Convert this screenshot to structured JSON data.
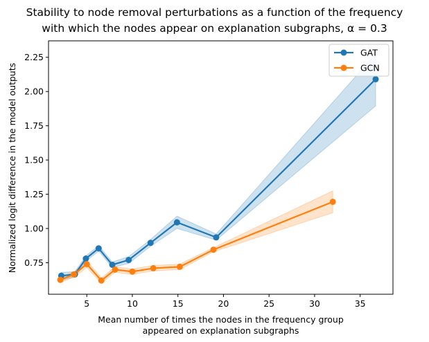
{
  "chart_data": {
    "type": "line",
    "title_lines": [
      "Stability to node removal perturbations as a function of the frequency",
      "with which the nodes appear on explanation subgraphs, α = 0.3"
    ],
    "xlabel_lines": [
      "Mean number of times the nodes in the frequency group",
      "appeared on explanation subgraphs"
    ],
    "ylabel": "Normalized logit difference in the model outputs",
    "xlim": [
      0.8,
      38.6
    ],
    "ylim": [
      0.52,
      2.37
    ],
    "xticks": [
      5,
      10,
      15,
      20,
      25,
      30,
      35
    ],
    "yticks": [
      0.75,
      1.0,
      1.25,
      1.5,
      1.75,
      2.0,
      2.25
    ],
    "ytick_labels": [
      "0.75",
      "1.00",
      "1.25",
      "1.50",
      "1.75",
      "2.00",
      "2.25"
    ],
    "legend_position": "top-right",
    "grid": false,
    "series": [
      {
        "name": "GAT",
        "color": "#1f77b4",
        "x": [
          2.2,
          3.7,
          4.9,
          6.3,
          7.8,
          9.6,
          12.0,
          14.9,
          19.2,
          36.7
        ],
        "y": [
          0.655,
          0.665,
          0.78,
          0.855,
          0.735,
          0.77,
          0.895,
          1.045,
          0.935,
          2.09
        ],
        "lower": [
          0.625,
          0.645,
          0.76,
          0.835,
          0.715,
          0.745,
          0.87,
          1.0,
          0.915,
          1.895
        ],
        "upper": [
          0.68,
          0.685,
          0.8,
          0.875,
          0.755,
          0.795,
          0.92,
          1.09,
          0.96,
          2.275
        ]
      },
      {
        "name": "GCN",
        "color": "#ff7f0e",
        "x": [
          2.1,
          3.6,
          5.0,
          6.6,
          8.1,
          10.0,
          12.3,
          15.2,
          18.9,
          32.0
        ],
        "y": [
          0.625,
          0.665,
          0.74,
          0.62,
          0.7,
          0.685,
          0.71,
          0.72,
          0.845,
          1.195
        ],
        "lower": [
          0.605,
          0.645,
          0.715,
          0.6,
          0.68,
          0.665,
          0.69,
          0.7,
          0.83,
          1.115
        ],
        "upper": [
          0.645,
          0.685,
          0.765,
          0.64,
          0.72,
          0.705,
          0.73,
          0.74,
          0.86,
          1.275
        ]
      }
    ]
  }
}
